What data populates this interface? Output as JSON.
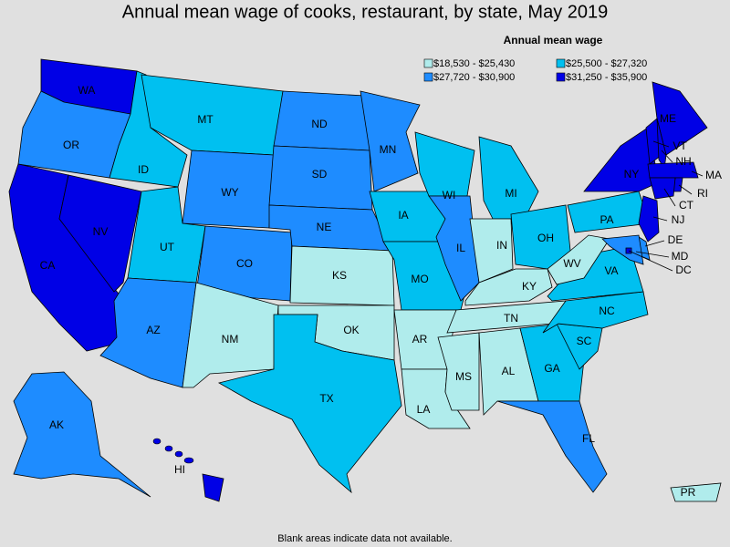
{
  "title": "Annual mean wage of cooks, restaurant, by state, May 2019",
  "legend": {
    "title": "Annual mean wage",
    "items": [
      {
        "label": "$18,530 - $25,430",
        "color": "#b0ecec"
      },
      {
        "label": "$25,500 - $27,320",
        "color": "#00c0f0"
      },
      {
        "label": "$27,720 - $30,900",
        "color": "#1e8cff"
      },
      {
        "label": "$31,250 - $35,900",
        "color": "#0000e6"
      }
    ]
  },
  "states": [
    {
      "label": "WA",
      "class": 3
    },
    {
      "label": "OR",
      "class": 2
    },
    {
      "label": "CA",
      "class": 3
    },
    {
      "label": "NV",
      "class": 3
    },
    {
      "label": "ID",
      "class": 1
    },
    {
      "label": "MT",
      "class": 1
    },
    {
      "label": "WY",
      "class": 2
    },
    {
      "label": "UT",
      "class": 1
    },
    {
      "label": "CO",
      "class": 2
    },
    {
      "label": "AZ",
      "class": 2
    },
    {
      "label": "NM",
      "class": 0
    },
    {
      "label": "ND",
      "class": 2
    },
    {
      "label": "SD",
      "class": 2
    },
    {
      "label": "NE",
      "class": 2
    },
    {
      "label": "KS",
      "class": 0
    },
    {
      "label": "OK",
      "class": 0
    },
    {
      "label": "TX",
      "class": 1
    },
    {
      "label": "MN",
      "class": 2
    },
    {
      "label": "IA",
      "class": 1
    },
    {
      "label": "MO",
      "class": 1
    },
    {
      "label": "AR",
      "class": 0
    },
    {
      "label": "LA",
      "class": 0
    },
    {
      "label": "WI",
      "class": 1
    },
    {
      "label": "IL",
      "class": 2
    },
    {
      "label": "MS",
      "class": 0
    },
    {
      "label": "MI",
      "class": 1
    },
    {
      "label": "IN",
      "class": 0
    },
    {
      "label": "OH",
      "class": 1
    },
    {
      "label": "KY",
      "class": 0
    },
    {
      "label": "TN",
      "class": 0
    },
    {
      "label": "AL",
      "class": 0
    },
    {
      "label": "GA",
      "class": 1
    },
    {
      "label": "FL",
      "class": 2
    },
    {
      "label": "SC",
      "class": 1
    },
    {
      "label": "NC",
      "class": 1
    },
    {
      "label": "VA",
      "class": 1
    },
    {
      "label": "WV",
      "class": 0
    },
    {
      "label": "PA",
      "class": 1
    },
    {
      "label": "NY",
      "class": 3
    },
    {
      "label": "ME",
      "class": 3
    },
    {
      "label": "VT",
      "class": 3
    },
    {
      "label": "NH",
      "class": 3
    },
    {
      "label": "MA",
      "class": 3
    },
    {
      "label": "RI",
      "class": 3
    },
    {
      "label": "CT",
      "class": 3
    },
    {
      "label": "NJ",
      "class": 3
    },
    {
      "label": "DE",
      "class": 2
    },
    {
      "label": "MD",
      "class": 2
    },
    {
      "label": "DC",
      "class": 3
    },
    {
      "label": "AK",
      "class": 2
    },
    {
      "label": "HI",
      "class": 3
    },
    {
      "label": "PR",
      "class": 0
    }
  ],
  "note": "Blank areas indicate data not available."
}
